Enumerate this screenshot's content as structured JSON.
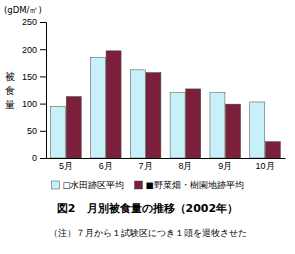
{
  "chart_data": {
    "type": "bar",
    "title": "図2　月別被食量の推移（2002年）",
    "ylabel": "被食量",
    "annotations": [
      "(gDM/㎡)",
      "（注）７月から１試験区につき１頭を退牧させた"
    ],
    "categories": [
      "5月",
      "6月",
      "7月",
      "8月",
      "9月",
      "10月"
    ],
    "series": [
      {
        "name": "□水田跡区平均",
        "color": "#c8f0f8",
        "values": [
          95,
          185,
          162,
          120,
          120,
          103
        ]
      },
      {
        "name": "■野菜畑・樹園地跡平均",
        "color": "#7b1f3a",
        "values": [
          113,
          197,
          157,
          127,
          99,
          30
        ]
      }
    ],
    "ylim": [
      0,
      250
    ],
    "yticks": [
      0,
      50,
      100,
      150,
      200,
      250
    ],
    "grid": false,
    "legend": "bottom"
  }
}
